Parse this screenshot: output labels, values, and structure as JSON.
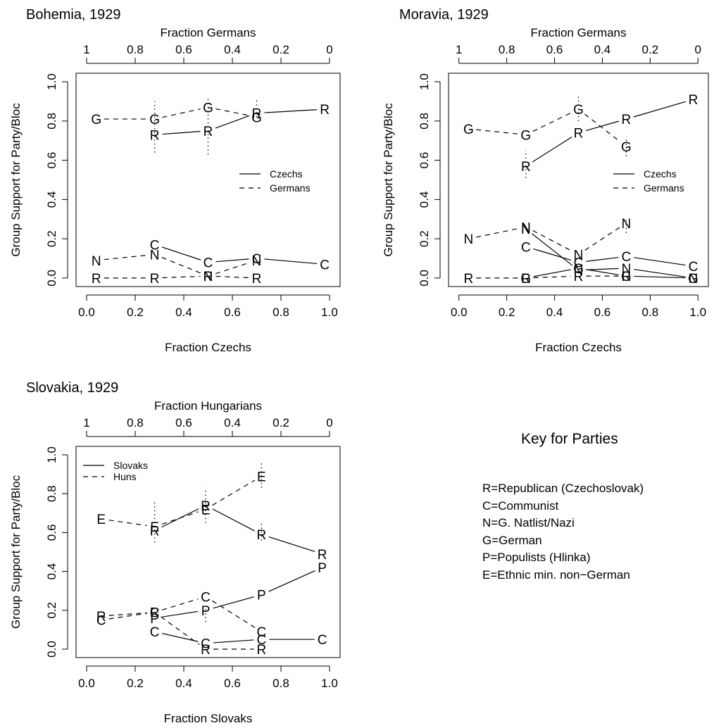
{
  "chart_data": [
    {
      "type": "line",
      "title": "Bohemia, 1929",
      "xlabel": "Fraction Czechs",
      "top_axis_label": "Fraction Germans",
      "ylabel": "Group Support for Party/Bloc",
      "xlim": [
        0,
        1
      ],
      "ylim": [
        0,
        1
      ],
      "x_ticks": [
        "0.0",
        "0.2",
        "0.4",
        "0.6",
        "0.8",
        "1.0"
      ],
      "top_ticks": [
        "1",
        "0.8",
        "0.6",
        "0.4",
        "0.2",
        "0"
      ],
      "y_ticks": [
        "0.0",
        "0.2",
        "0.4",
        "0.6",
        "0.8",
        "1.0"
      ],
      "legend": {
        "position": "right",
        "entries": [
          {
            "label": "Czechs",
            "style": "solid"
          },
          {
            "label": "Germans",
            "style": "dashed"
          }
        ]
      },
      "series": [
        {
          "name": "Czechs",
          "style": "solid",
          "party": "R",
          "points": [
            [
              0.28,
              0.73
            ],
            [
              0.5,
              0.75
            ],
            [
              0.7,
              0.84
            ],
            [
              0.98,
              0.86
            ]
          ]
        },
        {
          "name": "Czechs",
          "style": "solid",
          "party": "C",
          "points": [
            [
              0.28,
              0.17
            ],
            [
              0.5,
              0.08
            ],
            [
              0.7,
              0.1
            ],
            [
              0.98,
              0.07
            ]
          ]
        },
        {
          "name": "Germans",
          "style": "dashed",
          "party": "G",
          "points": [
            [
              0.04,
              0.81
            ],
            [
              0.28,
              0.81
            ],
            [
              0.5,
              0.87
            ],
            [
              0.7,
              0.82
            ]
          ]
        },
        {
          "name": "Germans",
          "style": "dashed",
          "party": "N",
          "points": [
            [
              0.04,
              0.09
            ],
            [
              0.28,
              0.12
            ],
            [
              0.5,
              0.01
            ],
            [
              0.7,
              0.09
            ]
          ]
        },
        {
          "name": "Germans",
          "style": "dashed",
          "party": "R",
          "points": [
            [
              0.04,
              0.0
            ],
            [
              0.28,
              0.0
            ],
            [
              0.5,
              0.01
            ],
            [
              0.7,
              0.0
            ]
          ]
        }
      ],
      "error_bars": [
        {
          "x": 0.28,
          "low": 0.64,
          "high": 0.9
        },
        {
          "x": 0.5,
          "low": 0.63,
          "high": 0.92
        },
        {
          "x": 0.7,
          "low": 0.82,
          "high": 0.91
        }
      ]
    },
    {
      "type": "line",
      "title": "Moravia, 1929",
      "xlabel": "Fraction Czechs",
      "top_axis_label": "Fraction Germans",
      "ylabel": "Group Support for Party/Bloc",
      "xlim": [
        0,
        1
      ],
      "ylim": [
        0,
        1
      ],
      "x_ticks": [
        "0.0",
        "0.2",
        "0.4",
        "0.6",
        "0.8",
        "1.0"
      ],
      "top_ticks": [
        "1",
        "0.8",
        "0.6",
        "0.4",
        "0.2",
        "0"
      ],
      "y_ticks": [
        "0.0",
        "0.2",
        "0.4",
        "0.6",
        "0.8",
        "1.0"
      ],
      "legend": {
        "position": "right",
        "entries": [
          {
            "label": "Czechs",
            "style": "solid"
          },
          {
            "label": "Germans",
            "style": "dashed"
          }
        ]
      },
      "series": [
        {
          "name": "Czechs",
          "style": "solid",
          "party": "R",
          "points": [
            [
              0.28,
              0.57
            ],
            [
              0.5,
              0.74
            ],
            [
              0.7,
              0.81
            ],
            [
              0.98,
              0.91
            ]
          ]
        },
        {
          "name": "Czechs",
          "style": "solid",
          "party": "C",
          "points": [
            [
              0.28,
              0.16
            ],
            [
              0.5,
              0.08
            ],
            [
              0.7,
              0.11
            ],
            [
              0.98,
              0.06
            ]
          ]
        },
        {
          "name": "Czechs",
          "style": "solid",
          "party": "G",
          "points": [
            [
              0.28,
              0.0
            ],
            [
              0.5,
              0.05
            ],
            [
              0.7,
              0.01
            ],
            [
              0.98,
              0.0
            ]
          ]
        },
        {
          "name": "Czechs",
          "style": "solid",
          "party": "N",
          "points": [
            [
              0.28,
              0.25
            ],
            [
              0.5,
              0.04
            ],
            [
              0.7,
              0.05
            ],
            [
              0.98,
              0.0
            ]
          ]
        },
        {
          "name": "Germans",
          "style": "dashed",
          "party": "G",
          "points": [
            [
              0.04,
              0.76
            ],
            [
              0.28,
              0.73
            ],
            [
              0.5,
              0.86
            ],
            [
              0.7,
              0.67
            ]
          ]
        },
        {
          "name": "Germans",
          "style": "dashed",
          "party": "N",
          "points": [
            [
              0.04,
              0.2
            ],
            [
              0.28,
              0.26
            ],
            [
              0.5,
              0.12
            ],
            [
              0.7,
              0.28
            ]
          ]
        },
        {
          "name": "Germans",
          "style": "dashed",
          "party": "R",
          "points": [
            [
              0.04,
              0.0
            ],
            [
              0.28,
              0.0
            ],
            [
              0.5,
              0.01
            ],
            [
              0.7,
              0.01
            ]
          ]
        }
      ],
      "error_bars": [
        {
          "x": 0.28,
          "low": 0.51,
          "high": 0.65
        },
        {
          "x": 0.5,
          "low": 0.8,
          "high": 0.93
        },
        {
          "x": 0.7,
          "low": 0.62,
          "high": 0.72
        },
        {
          "x": 0.7,
          "low": 0.23,
          "high": 0.3
        }
      ]
    },
    {
      "type": "line",
      "title": "Slovakia, 1929",
      "xlabel": "Fraction Slovaks",
      "top_axis_label": "Fraction Hungarians",
      "ylabel": "Group Support for Party/Bloc",
      "xlim": [
        0,
        1
      ],
      "ylim": [
        0,
        1
      ],
      "x_ticks": [
        "0.0",
        "0.2",
        "0.4",
        "0.6",
        "0.8",
        "1.0"
      ],
      "top_ticks": [
        "1",
        "0.8",
        "0.6",
        "0.4",
        "0.2",
        "0"
      ],
      "y_ticks": [
        "0.0",
        "0.2",
        "0.4",
        "0.6",
        "0.8",
        "1.0"
      ],
      "legend": {
        "position": "top-left",
        "entries": [
          {
            "label": "Slovaks",
            "style": "solid"
          },
          {
            "label": "Huns",
            "style": "dashed"
          }
        ]
      },
      "series": [
        {
          "name": "Slovaks",
          "style": "solid",
          "party": "R",
          "points": [
            [
              0.28,
              0.61
            ],
            [
              0.49,
              0.74
            ],
            [
              0.72,
              0.59
            ],
            [
              0.97,
              0.49
            ]
          ]
        },
        {
          "name": "Slovaks",
          "style": "solid",
          "party": "P",
          "points": [
            [
              0.28,
              0.16
            ],
            [
              0.49,
              0.2
            ],
            [
              0.72,
              0.28
            ],
            [
              0.97,
              0.42
            ]
          ]
        },
        {
          "name": "Slovaks",
          "style": "solid",
          "party": "C",
          "points": [
            [
              0.28,
              0.09
            ],
            [
              0.49,
              0.03
            ],
            [
              0.72,
              0.05
            ],
            [
              0.97,
              0.05
            ]
          ]
        },
        {
          "name": "Huns",
          "style": "dashed",
          "party": "E",
          "points": [
            [
              0.06,
              0.67
            ],
            [
              0.28,
              0.63
            ],
            [
              0.49,
              0.72
            ],
            [
              0.72,
              0.89
            ]
          ]
        },
        {
          "name": "Huns",
          "style": "dashed",
          "party": "R",
          "points": [
            [
              0.06,
              0.17
            ],
            [
              0.28,
              0.19
            ],
            [
              0.49,
              0.0
            ],
            [
              0.72,
              0.0
            ]
          ]
        },
        {
          "name": "Huns",
          "style": "dashed",
          "party": "C",
          "points": [
            [
              0.06,
              0.15
            ],
            [
              0.28,
              0.19
            ],
            [
              0.49,
              0.27
            ],
            [
              0.72,
              0.09
            ]
          ]
        }
      ],
      "error_bars": [
        {
          "x": 0.28,
          "low": 0.55,
          "high": 0.76
        },
        {
          "x": 0.49,
          "low": 0.65,
          "high": 0.83
        },
        {
          "x": 0.72,
          "low": 0.83,
          "high": 0.96
        },
        {
          "x": 0.72,
          "low": 0.56,
          "high": 0.65
        },
        {
          "x": 0.49,
          "low": 0.14,
          "high": 0.22
        }
      ]
    }
  ],
  "key": {
    "title": "Key for Parties",
    "items": [
      "R=Republican (Czechoslovak)",
      "C=Communist",
      "N=G. Natlist/Nazi",
      "G=German",
      "P=Populists (Hlinka)",
      "E=Ethnic min. non−German"
    ]
  }
}
